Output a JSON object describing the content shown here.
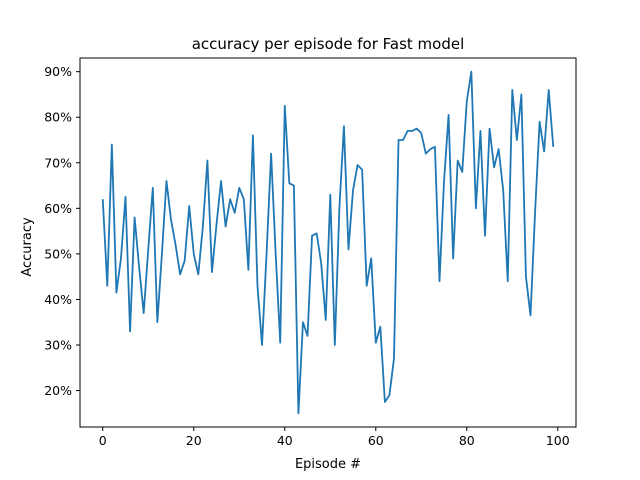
{
  "chart_data": {
    "type": "line",
    "title": "accuracy per episode for Fast model",
    "xlabel": "Episode #",
    "ylabel": "Accuracy",
    "xlim": [
      -5,
      104
    ],
    "ylim": [
      0.12,
      0.93
    ],
    "xticks": [
      0,
      20,
      40,
      60,
      80,
      100
    ],
    "yticks": [
      0.2,
      0.3,
      0.4,
      0.5,
      0.6,
      0.7,
      0.8,
      0.9
    ],
    "ytick_labels": [
      "20%",
      "30%",
      "40%",
      "50%",
      "60%",
      "70%",
      "80%",
      "90%"
    ],
    "grid": false,
    "line_color": "#1f77b4",
    "series": [
      {
        "x": [
          0,
          1,
          2,
          3,
          4,
          5,
          6,
          7,
          8,
          9,
          10,
          11,
          12,
          13,
          14,
          15,
          16,
          17,
          18,
          19,
          20,
          21,
          22,
          23,
          24,
          25,
          26,
          27,
          28,
          29,
          30,
          31,
          32,
          33,
          34,
          35,
          36,
          37,
          38,
          39,
          40,
          41,
          42,
          43,
          44,
          45,
          46,
          47,
          48,
          49,
          50,
          51,
          52,
          53,
          54,
          55,
          56,
          57,
          58,
          59,
          60,
          61,
          62,
          63,
          64,
          65,
          66,
          67,
          68,
          69,
          70,
          71,
          72,
          73,
          74,
          75,
          76,
          77,
          78,
          79,
          80,
          81,
          82,
          83,
          84,
          85,
          86,
          87,
          88,
          89,
          90,
          91,
          92,
          93,
          94,
          95,
          96,
          97,
          98,
          99
        ],
        "y": [
          0.62,
          0.43,
          0.74,
          0.415,
          0.49,
          0.625,
          0.33,
          0.58,
          0.47,
          0.37,
          0.51,
          0.645,
          0.35,
          0.5,
          0.66,
          0.575,
          0.52,
          0.455,
          0.485,
          0.605,
          0.5,
          0.455,
          0.56,
          0.705,
          0.46,
          0.565,
          0.66,
          0.56,
          0.62,
          0.59,
          0.645,
          0.62,
          0.465,
          0.76,
          0.43,
          0.3,
          0.5,
          0.72,
          0.5,
          0.305,
          0.825,
          0.655,
          0.65,
          0.15,
          0.35,
          0.32,
          0.54,
          0.545,
          0.48,
          0.355,
          0.63,
          0.3,
          0.6,
          0.78,
          0.51,
          0.64,
          0.695,
          0.685,
          0.43,
          0.49,
          0.305,
          0.34,
          0.175,
          0.19,
          0.27,
          0.75,
          0.75,
          0.77,
          0.77,
          0.775,
          0.765,
          0.72,
          0.73,
          0.735,
          0.44,
          0.66,
          0.805,
          0.49,
          0.705,
          0.68,
          0.835,
          0.9,
          0.6,
          0.77,
          0.54,
          0.775,
          0.69,
          0.73,
          0.64,
          0.44,
          0.86,
          0.75,
          0.85,
          0.45,
          0.365,
          0.59,
          0.79,
          0.725,
          0.86,
          0.735
        ]
      }
    ]
  }
}
